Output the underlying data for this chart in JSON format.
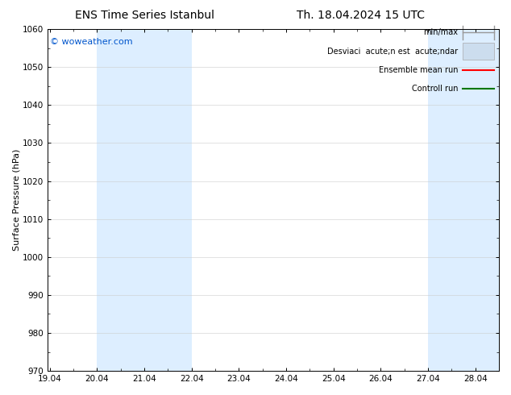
{
  "title_left": "ENS Time Series Istanbul",
  "title_right": "Th. 18.04.2024 15 UTC",
  "ylabel": "Surface Pressure (hPa)",
  "ylim": [
    970,
    1060
  ],
  "yticks": [
    970,
    980,
    990,
    1000,
    1010,
    1020,
    1030,
    1040,
    1050,
    1060
  ],
  "x_labels": [
    "19.04",
    "20.04",
    "21.04",
    "22.04",
    "23.04",
    "24.04",
    "25.04",
    "26.04",
    "27.04",
    "28.04"
  ],
  "x_values": [
    0,
    1,
    2,
    3,
    4,
    5,
    6,
    7,
    8,
    9
  ],
  "xlim_min": -0.05,
  "xlim_max": 9.5,
  "shaded_bands": [
    {
      "x_start": 1.0,
      "x_end": 3.0
    },
    {
      "x_start": 8.0,
      "x_end": 9.5
    }
  ],
  "shade_color": "#ddeeff",
  "watermark": "© woweather.com",
  "watermark_color": "#0055cc",
  "legend_minmax_color": "#999999",
  "legend_std_color": "#ccddee",
  "legend_ens_color": "#ff0000",
  "legend_ctrl_color": "#007700",
  "bg_color": "#ffffff",
  "plot_bg_color": "#ffffff",
  "grid_color": "#cccccc",
  "tick_color": "#000000",
  "spine_color": "#000000",
  "title_fontsize": 10,
  "ylabel_fontsize": 8,
  "tick_fontsize": 7.5,
  "legend_fontsize": 7,
  "watermark_fontsize": 8
}
